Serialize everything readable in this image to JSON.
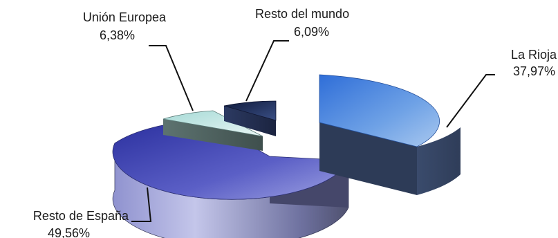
{
  "chart_data": {
    "type": "pie",
    "title": "",
    "legend": "none",
    "slices": [
      {
        "name": "La Rioja",
        "label": "37,97%",
        "value": 37.97,
        "color": "#3f7fd6"
      },
      {
        "name": "Resto de España",
        "label": "49,56%",
        "value": 49.56,
        "color": "#6b6ec9"
      },
      {
        "name": "Unión Europea",
        "label": "6,38%",
        "value": 6.38,
        "color": "#cfe9e6"
      },
      {
        "name": "Resto del mundo",
        "label": "6,09%",
        "value": 6.09,
        "color": "#1d2a52"
      }
    ]
  }
}
